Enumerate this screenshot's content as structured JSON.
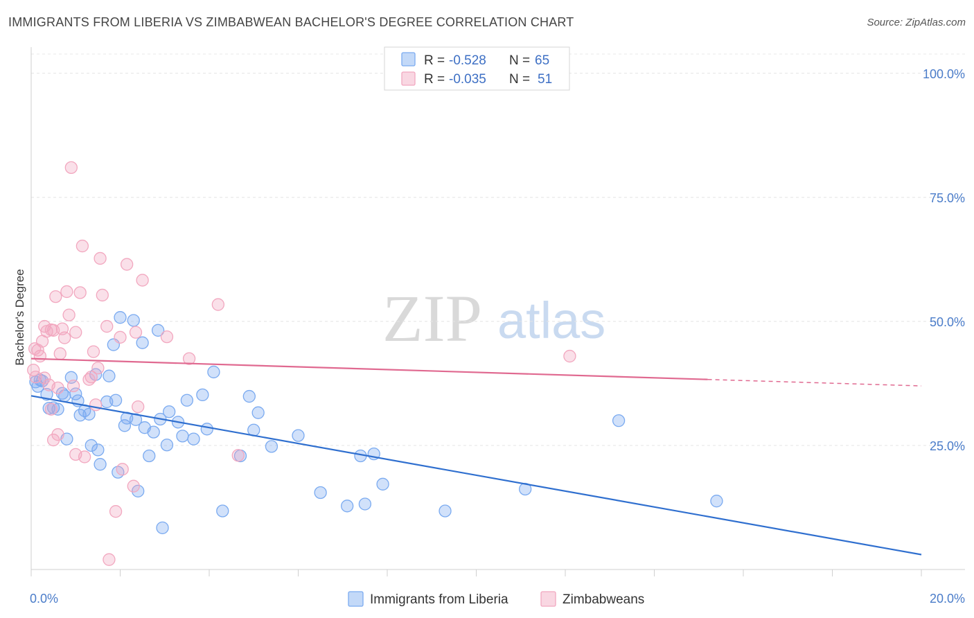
{
  "title": "IMMIGRANTS FROM LIBERIA VS ZIMBABWEAN BACHELOR'S DEGREE CORRELATION CHART",
  "source": "Source: ZipAtlas.com",
  "watermark": {
    "zip": "ZIP",
    "atlas": "atlas"
  },
  "legend": {
    "r_label": "R =",
    "n_label": "N =",
    "rows": [
      {
        "r": "-0.528",
        "n": "65",
        "color": "#7aaaf0"
      },
      {
        "r": "-0.035",
        "n": "51",
        "color": "#f2a7bf"
      }
    ]
  },
  "chart_data": {
    "type": "scatter",
    "title": "IMMIGRANTS FROM LIBERIA VS ZIMBABWEAN BACHELOR'S DEGREE CORRELATION CHART",
    "xlabel": "",
    "ylabel": "Bachelor's Degree",
    "xlim": [
      0,
      20
    ],
    "ylim": [
      0,
      105
    ],
    "x_tick_labels": [
      "0.0%",
      "20.0%"
    ],
    "y_ticks": [
      25,
      50,
      75,
      100
    ],
    "y_tick_labels": [
      "25.0%",
      "50.0%",
      "75.0%",
      "100.0%"
    ],
    "grid": true,
    "legend_position": "top-center",
    "series": [
      {
        "name": "Immigrants from Liberia",
        "color": "#7aaaf0",
        "line_color": "#2f6fcf",
        "trend": {
          "x": [
            0,
            20
          ],
          "y": [
            35.0,
            3.0
          ]
        },
        "points": [
          [
            0.1,
            37.8
          ],
          [
            0.2,
            38.2
          ],
          [
            0.25,
            38.0
          ],
          [
            0.35,
            35.3
          ],
          [
            0.4,
            32.5
          ],
          [
            0.5,
            32.6
          ],
          [
            0.6,
            32.3
          ],
          [
            0.7,
            35.5
          ],
          [
            0.75,
            35.0
          ],
          [
            0.8,
            26.3
          ],
          [
            0.9,
            38.7
          ],
          [
            1.0,
            35.4
          ],
          [
            1.05,
            34.0
          ],
          [
            1.1,
            31.1
          ],
          [
            1.2,
            32.0
          ],
          [
            1.3,
            31.3
          ],
          [
            1.35,
            25.0
          ],
          [
            1.45,
            39.3
          ],
          [
            1.5,
            24.1
          ],
          [
            1.55,
            21.2
          ],
          [
            1.7,
            33.8
          ],
          [
            1.75,
            39.0
          ],
          [
            1.85,
            45.3
          ],
          [
            1.9,
            34.1
          ],
          [
            1.95,
            19.6
          ],
          [
            2.0,
            50.8
          ],
          [
            2.1,
            29.0
          ],
          [
            2.15,
            30.5
          ],
          [
            2.3,
            50.2
          ],
          [
            2.35,
            30.2
          ],
          [
            2.4,
            15.8
          ],
          [
            2.5,
            45.7
          ],
          [
            2.55,
            28.6
          ],
          [
            2.65,
            22.9
          ],
          [
            2.75,
            27.7
          ],
          [
            2.85,
            48.2
          ],
          [
            2.9,
            30.3
          ],
          [
            2.95,
            8.4
          ],
          [
            3.05,
            25.1
          ],
          [
            3.1,
            31.8
          ],
          [
            3.3,
            29.7
          ],
          [
            3.4,
            26.9
          ],
          [
            3.5,
            34.1
          ],
          [
            3.65,
            26.3
          ],
          [
            3.85,
            35.2
          ],
          [
            3.95,
            28.3
          ],
          [
            4.1,
            39.8
          ],
          [
            4.3,
            11.8
          ],
          [
            4.7,
            22.9
          ],
          [
            4.9,
            34.9
          ],
          [
            5.0,
            28.1
          ],
          [
            5.1,
            31.6
          ],
          [
            5.4,
            24.8
          ],
          [
            6.0,
            27.0
          ],
          [
            6.5,
            15.5
          ],
          [
            7.1,
            12.8
          ],
          [
            7.4,
            22.9
          ],
          [
            7.5,
            13.2
          ],
          [
            7.7,
            23.3
          ],
          [
            7.9,
            17.2
          ],
          [
            9.3,
            11.8
          ],
          [
            11.1,
            16.2
          ],
          [
            13.2,
            30.0
          ],
          [
            15.4,
            13.8
          ],
          [
            0.15,
            36.9
          ]
        ]
      },
      {
        "name": "Zimbabweans",
        "color": "#f2a7bf",
        "line_color": "#e06990",
        "trend": {
          "x": [
            0,
            15.2,
            20
          ],
          "y": [
            42.5,
            38.3,
            37.0
          ]
        },
        "points": [
          [
            0.05,
            40.2
          ],
          [
            0.1,
            38.8
          ],
          [
            0.15,
            44.2
          ],
          [
            0.2,
            43.0
          ],
          [
            0.25,
            46.0
          ],
          [
            0.3,
            49.0
          ],
          [
            0.35,
            48.0
          ],
          [
            0.4,
            37.2
          ],
          [
            0.45,
            32.3
          ],
          [
            0.5,
            26.1
          ],
          [
            0.55,
            55.0
          ],
          [
            0.6,
            27.2
          ],
          [
            0.65,
            43.5
          ],
          [
            0.7,
            48.5
          ],
          [
            0.75,
            46.7
          ],
          [
            0.8,
            56.0
          ],
          [
            0.85,
            51.3
          ],
          [
            0.9,
            81.0
          ],
          [
            1.0,
            23.2
          ],
          [
            1.1,
            55.8
          ],
          [
            1.15,
            65.2
          ],
          [
            1.2,
            22.7
          ],
          [
            1.3,
            38.3
          ],
          [
            1.35,
            38.8
          ],
          [
            1.4,
            43.9
          ],
          [
            1.45,
            33.2
          ],
          [
            1.5,
            40.6
          ],
          [
            1.55,
            62.7
          ],
          [
            1.6,
            55.3
          ],
          [
            1.7,
            49.0
          ],
          [
            1.75,
            2.0
          ],
          [
            1.9,
            11.7
          ],
          [
            2.0,
            46.8
          ],
          [
            2.05,
            20.2
          ],
          [
            2.15,
            61.5
          ],
          [
            2.3,
            16.8
          ],
          [
            2.35,
            47.8
          ],
          [
            2.4,
            32.8
          ],
          [
            2.5,
            58.3
          ],
          [
            3.05,
            46.9
          ],
          [
            3.55,
            42.5
          ],
          [
            4.2,
            53.4
          ],
          [
            4.65,
            23.0
          ],
          [
            12.1,
            43.0
          ],
          [
            0.08,
            44.5
          ],
          [
            0.5,
            48.2
          ],
          [
            0.95,
            37.0
          ],
          [
            1.0,
            47.8
          ],
          [
            0.3,
            38.6
          ],
          [
            0.6,
            36.6
          ],
          [
            0.45,
            48.3
          ]
        ]
      }
    ]
  }
}
